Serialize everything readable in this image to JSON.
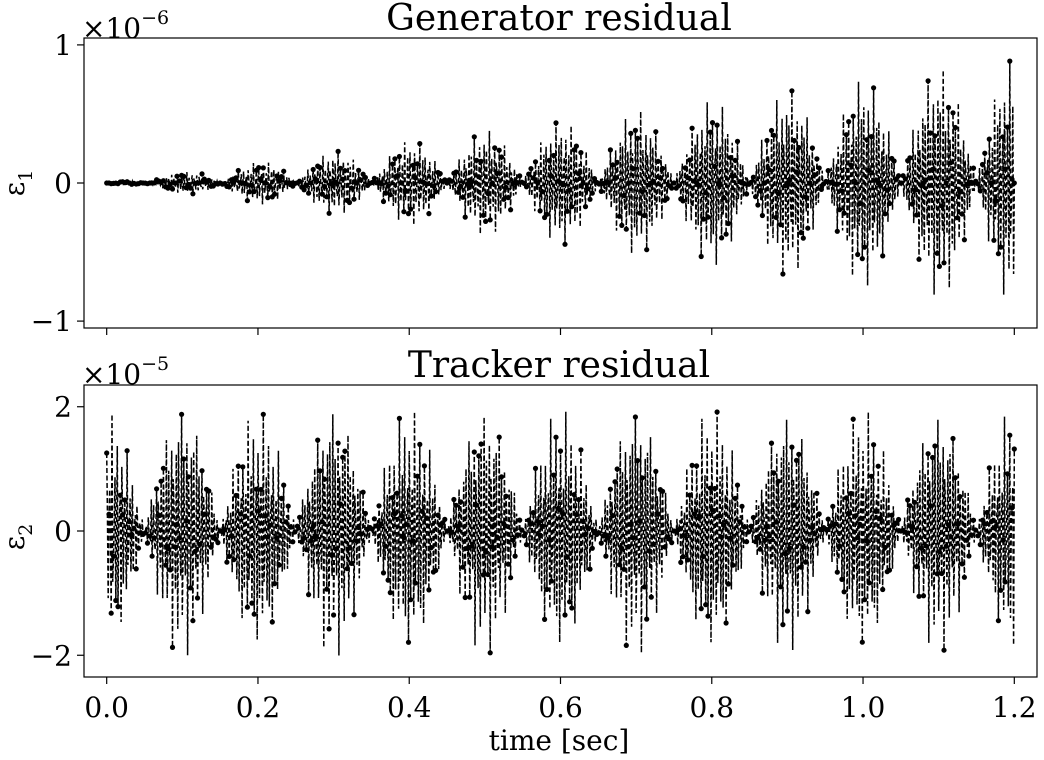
{
  "chart_data": [
    {
      "type": "line",
      "title": "Generator residual",
      "ylabel": "ε",
      "ylabel_sub": "1",
      "scale_base": "×10",
      "scale_exp": "−6",
      "ylim": [
        -1.05,
        1.05
      ],
      "yticks": [
        -1,
        0,
        1
      ],
      "ytick_labels": [
        "−1",
        "0",
        "1"
      ],
      "xlim": [
        -0.03,
        1.23
      ],
      "xticks": [
        0.0,
        0.2,
        0.4,
        0.6,
        0.8,
        1.0,
        1.2
      ],
      "grid": false,
      "legend": false,
      "series": [
        {
          "style": "black dashed line with dot markers",
          "envelope_peaks_x": [
            0.0,
            0.1,
            0.2,
            0.3,
            0.4,
            0.5,
            0.6,
            0.7,
            0.8,
            0.9,
            1.0,
            1.1,
            1.2
          ],
          "envelope_peaks_y": [
            0.0,
            0.08,
            0.16,
            0.24,
            0.32,
            0.4,
            0.47,
            0.55,
            0.63,
            0.71,
            0.79,
            0.87,
            0.95
          ],
          "envelope_nodes_x": [
            0.05,
            0.15,
            0.25,
            0.35,
            0.45,
            0.55,
            0.65,
            0.75,
            0.85,
            0.95,
            1.05,
            1.15
          ]
        }
      ]
    },
    {
      "type": "line",
      "title": "Tracker residual",
      "ylabel": "ε",
      "ylabel_sub": "2",
      "scale_base": "×10",
      "scale_exp": "−5",
      "ylim": [
        -2.35,
        2.35
      ],
      "yticks": [
        -2,
        0,
        2
      ],
      "ytick_labels": [
        "−2",
        "0",
        "2"
      ],
      "xlim": [
        -0.03,
        1.23
      ],
      "xticks": [
        0.0,
        0.2,
        0.4,
        0.6,
        0.8,
        1.0,
        1.2
      ],
      "xtick_labels": [
        "0.0",
        "0.2",
        "0.4",
        "0.6",
        "0.8",
        "1.0",
        "1.2"
      ],
      "xlabel": "time [sec]",
      "grid": false,
      "legend": false,
      "series": [
        {
          "style": "black dashed line with dot markers",
          "envelope_peaks_x": [
            0.0,
            0.1,
            0.2,
            0.3,
            0.4,
            0.5,
            0.6,
            0.7,
            0.8,
            0.9,
            1.0,
            1.1,
            1.2
          ],
          "envelope_peaks_y": [
            1.95,
            2.1,
            1.95,
            2.1,
            2.0,
            2.05,
            2.0,
            2.05,
            2.0,
            2.0,
            2.0,
            2.0,
            2.05
          ],
          "envelope_nodes_x": [
            0.05,
            0.15,
            0.25,
            0.35,
            0.45,
            0.55,
            0.65,
            0.75,
            0.85,
            0.95,
            1.05,
            1.15
          ]
        }
      ]
    }
  ]
}
